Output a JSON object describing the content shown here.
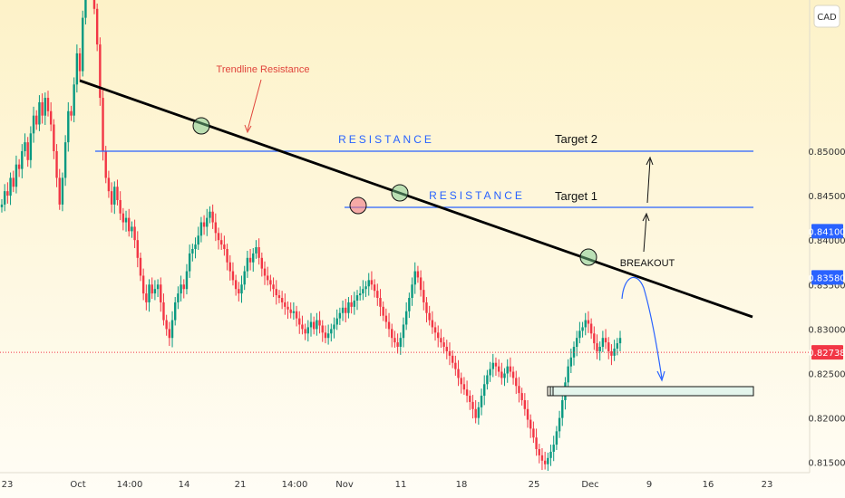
{
  "chart_data": {
    "type": "candlestick",
    "currency_label": "CAD",
    "y_ticks": [
      0.85,
      0.845,
      0.84,
      0.835,
      0.83,
      0.825,
      0.82,
      0.815
    ],
    "y_tick_labels": [
      "0.85000",
      "0.84500",
      "0.84000",
      "0.83500",
      "0.83000",
      "0.82500",
      "0.82000",
      "0.81500"
    ],
    "ylim": [
      0.811,
      0.867
    ],
    "x_tick_labels": [
      "23",
      "Oct",
      "14:00",
      "14",
      "21",
      "14:00",
      "Nov",
      "11",
      "18",
      "25",
      "Dec",
      "9",
      "16",
      "23"
    ],
    "price_labels": [
      {
        "value": 0.841,
        "text": "0.84100",
        "color": "#2962ff"
      },
      {
        "value": 0.8358,
        "text": "0.83580",
        "color": "#2962ff"
      },
      {
        "value": 0.82738,
        "text": "0.82738",
        "color": "#f23645"
      }
    ],
    "current_price": 0.82738,
    "resistance_levels": [
      {
        "value": 0.841,
        "label": "RESISTANCE",
        "target": "Target 2"
      },
      {
        "value": 0.8358,
        "label": "RESISTANCE",
        "target": "Target 1"
      }
    ],
    "annotations": {
      "trendline": "Trendline Resistance",
      "breakout": "BREAKOUT"
    },
    "colors": {
      "up": "#089981",
      "down": "#f23645",
      "resistance": "#2962ff",
      "trendline": "#000000",
      "current": "#f23645",
      "projection": "#2962ff"
    },
    "closes": [
      0.844,
      0.8455,
      0.845,
      0.847,
      0.846,
      0.8485,
      0.848,
      0.85,
      0.851,
      0.849,
      0.852,
      0.854,
      0.853,
      0.8555,
      0.854,
      0.856,
      0.8545,
      0.853,
      0.85,
      0.847,
      0.844,
      0.847,
      0.851,
      0.8545,
      0.854,
      0.8575,
      0.861,
      0.859,
      0.865,
      0.868,
      0.87,
      0.872,
      0.866,
      0.862,
      0.856,
      0.85,
      0.847,
      0.8455,
      0.844,
      0.846,
      0.8445,
      0.843,
      0.842,
      0.8425,
      0.841,
      0.8415,
      0.84,
      0.838,
      0.836,
      0.834,
      0.833,
      0.835,
      0.834,
      0.8345,
      0.835,
      0.833,
      0.831,
      0.83,
      0.829,
      0.831,
      0.833,
      0.834,
      0.835,
      0.8345,
      0.8365,
      0.8385,
      0.839,
      0.8395,
      0.8405,
      0.842,
      0.8415,
      0.8425,
      0.8432,
      0.842,
      0.8408,
      0.84,
      0.8395,
      0.839,
      0.8375,
      0.8365,
      0.8355,
      0.8345,
      0.834,
      0.835,
      0.8365,
      0.838,
      0.8375,
      0.8385,
      0.8392,
      0.838,
      0.8368,
      0.836,
      0.8355,
      0.835,
      0.8345,
      0.8338,
      0.8335,
      0.833,
      0.8325,
      0.8322,
      0.8318,
      0.832,
      0.8312,
      0.8305,
      0.83,
      0.8295,
      0.8302,
      0.8308,
      0.83,
      0.831,
      0.8304,
      0.8296,
      0.829,
      0.8295,
      0.83,
      0.8305,
      0.8312,
      0.8318,
      0.8324,
      0.8318,
      0.833,
      0.8325,
      0.8332,
      0.8338,
      0.834,
      0.8345,
      0.8348,
      0.8355,
      0.835,
      0.8343,
      0.8335,
      0.8325,
      0.8315,
      0.8308,
      0.83,
      0.829,
      0.8285,
      0.828,
      0.829,
      0.8305,
      0.832,
      0.8335,
      0.835,
      0.8365,
      0.8358,
      0.8344,
      0.833,
      0.8318,
      0.831,
      0.8302,
      0.8296,
      0.829,
      0.8285,
      0.828,
      0.8275,
      0.827,
      0.8262,
      0.8255,
      0.8245,
      0.8238,
      0.8232,
      0.8225,
      0.8218,
      0.821,
      0.82,
      0.8212,
      0.8225,
      0.8238,
      0.8248,
      0.8255,
      0.8262,
      0.8258,
      0.8252,
      0.8245,
      0.825,
      0.8258,
      0.8252,
      0.8245,
      0.8236,
      0.8228,
      0.822,
      0.821,
      0.8198,
      0.8188,
      0.8178,
      0.8165,
      0.8158,
      0.8152,
      0.8148,
      0.8155,
      0.8162,
      0.817,
      0.8185,
      0.82,
      0.822,
      0.824,
      0.8258,
      0.8268,
      0.828,
      0.829,
      0.8298,
      0.8302,
      0.831,
      0.8306,
      0.8295,
      0.8284,
      0.8275,
      0.828,
      0.829,
      0.8285,
      0.8275,
      0.827,
      0.8278,
      0.8284,
      0.829
    ]
  }
}
